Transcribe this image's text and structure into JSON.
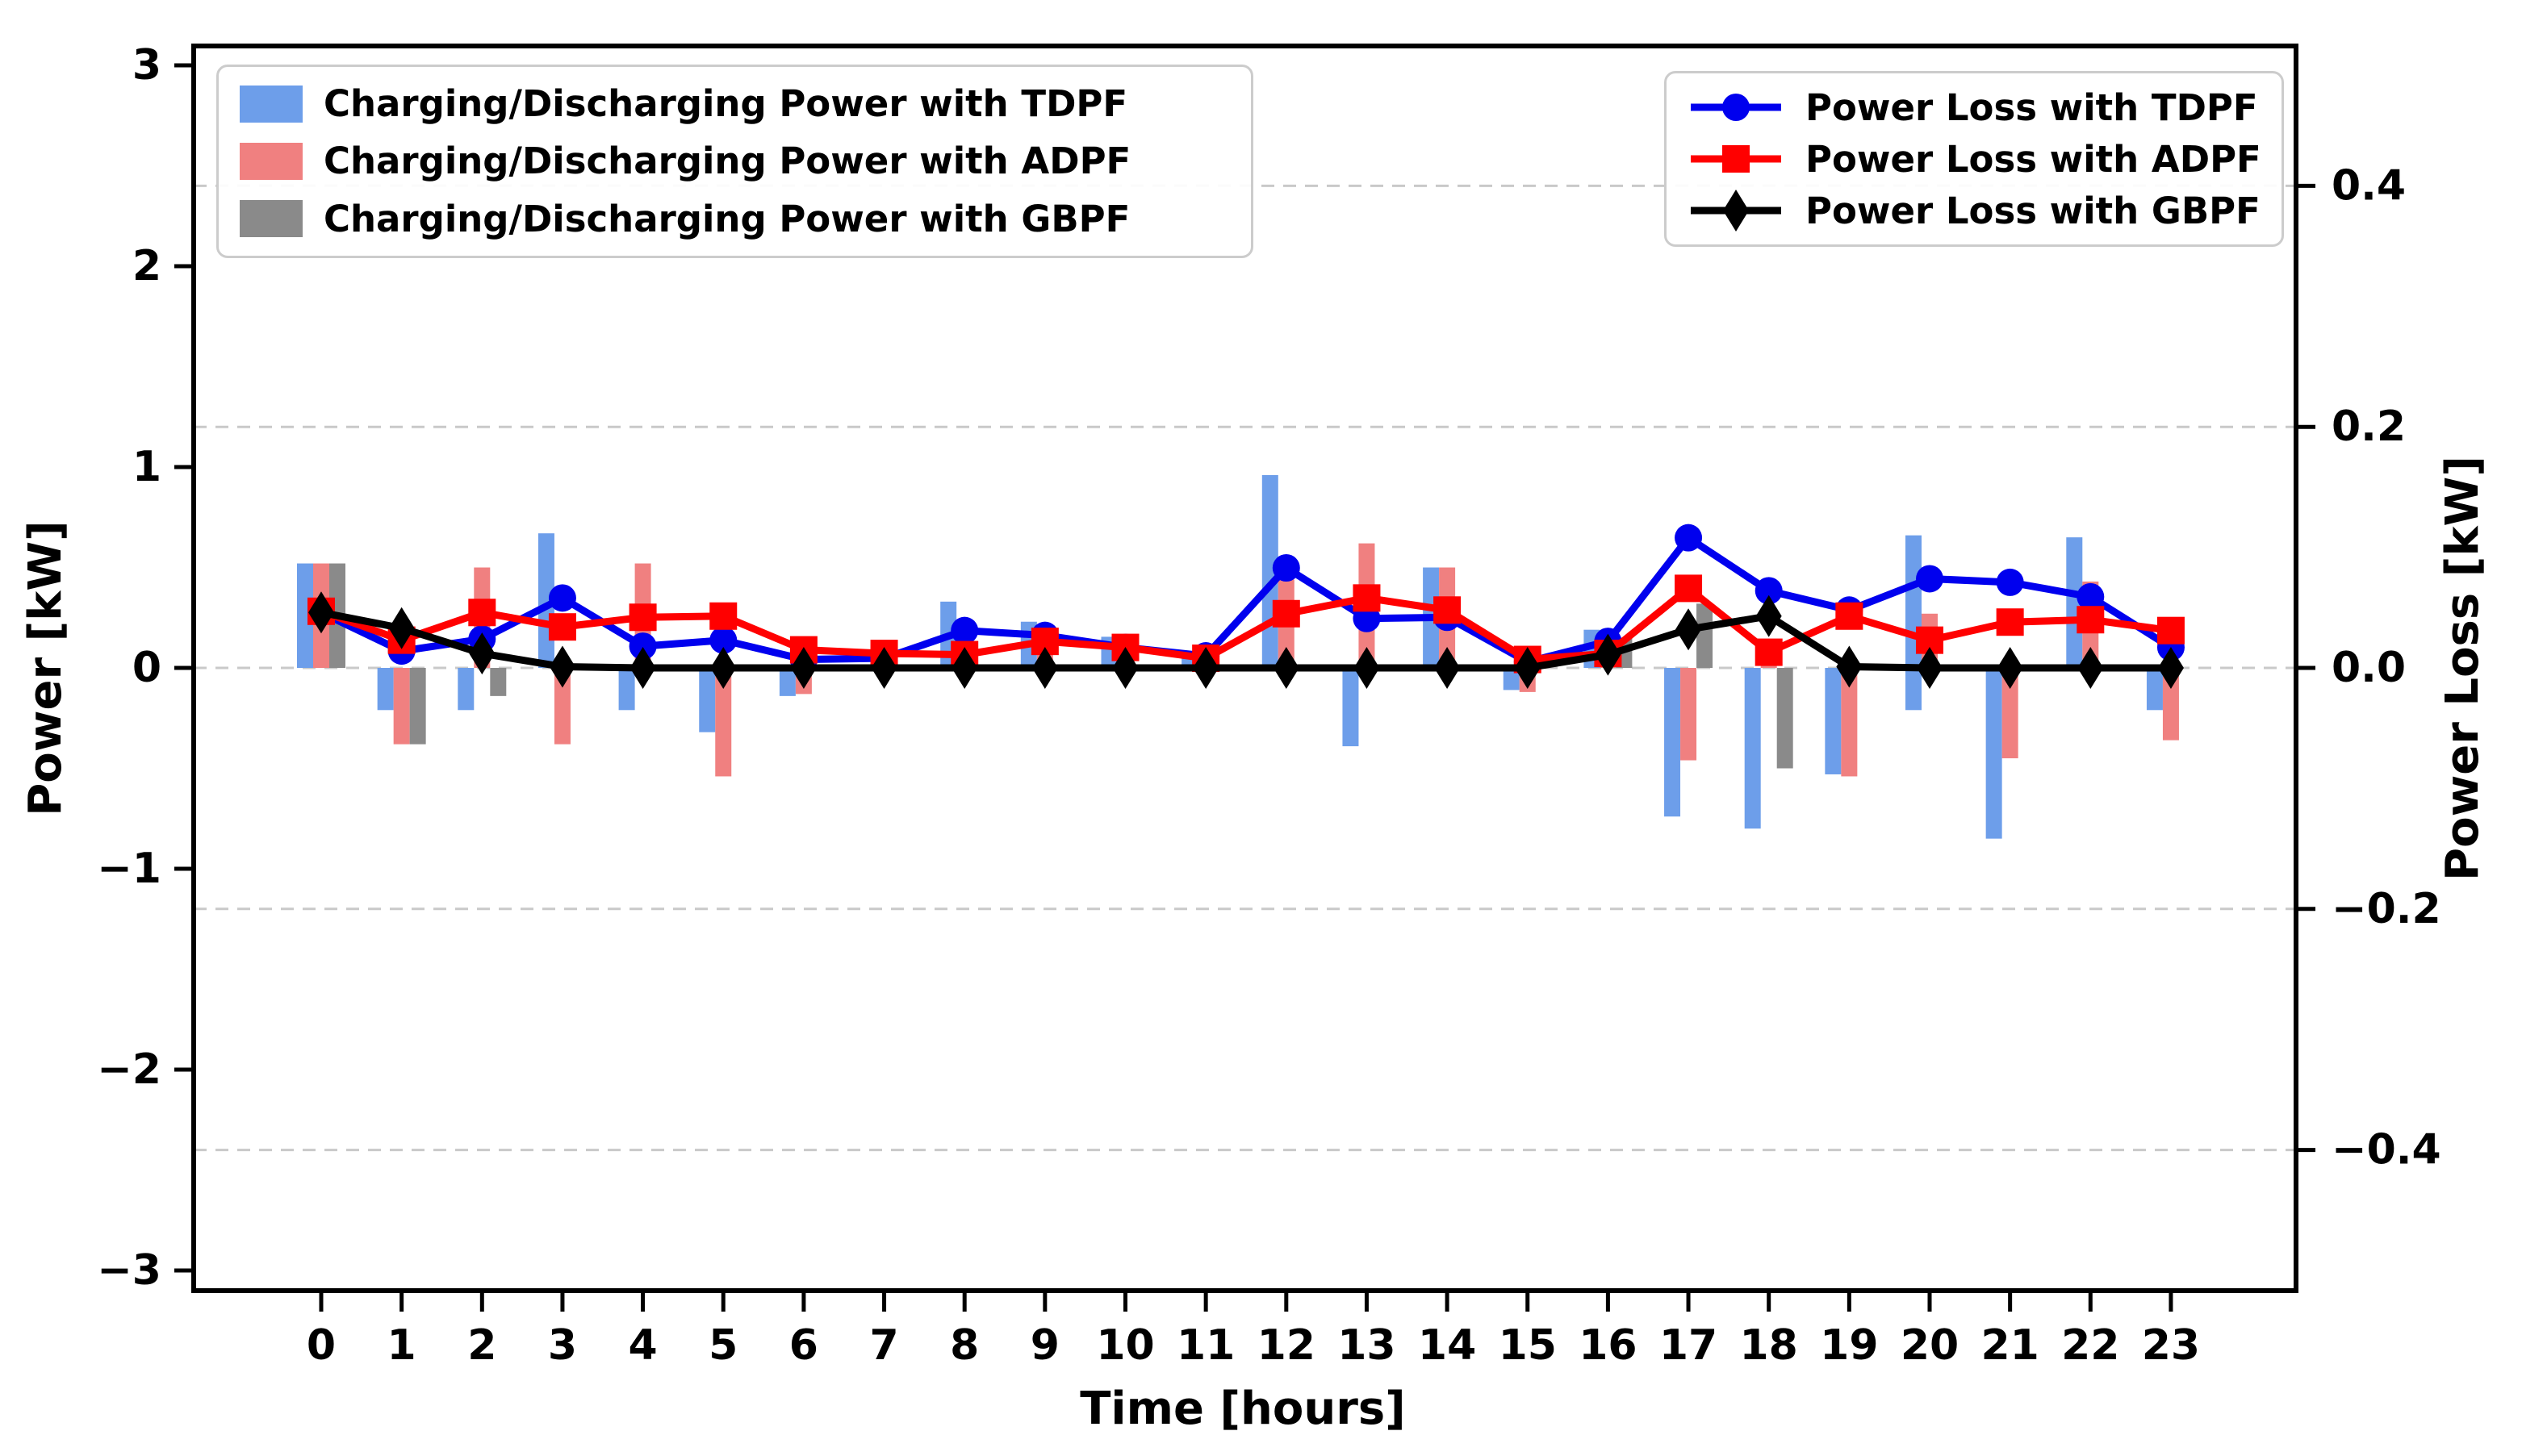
{
  "chart_data": {
    "type": "bar+line dual-axis",
    "xlabel": "Time [hours]",
    "ylabel_left": "Power [kW]",
    "ylabel_right": "Power Loss [kW]",
    "x": [
      0,
      1,
      2,
      3,
      4,
      5,
      6,
      7,
      8,
      9,
      10,
      11,
      12,
      13,
      14,
      15,
      16,
      17,
      18,
      19,
      20,
      21,
      22,
      23
    ],
    "xtick_labels": [
      "0",
      "1",
      "2",
      "3",
      "4",
      "5",
      "6",
      "7",
      "8",
      "9",
      "10",
      "11",
      "12",
      "13",
      "14",
      "15",
      "16",
      "17",
      "18",
      "19",
      "20",
      "21",
      "22",
      "23"
    ],
    "ylim_left": [
      -3.1,
      3.1
    ],
    "yticks_left": {
      "values": [
        3,
        2,
        1,
        0,
        -1,
        -2,
        -3
      ],
      "labels": [
        "3",
        "2",
        "1",
        "0",
        "−1",
        "−2",
        "−3"
      ]
    },
    "ylim_right": [
      -0.517,
      0.517
    ],
    "yticks_right": {
      "values": [
        0.4,
        0.2,
        0.0,
        -0.2,
        -0.4
      ],
      "labels": [
        "0.4",
        "0.2",
        "0.0",
        "−0.2",
        "−0.4"
      ]
    },
    "grid": {
      "on": true,
      "color": "#c9c9c9",
      "style": "dashed",
      "at_right_values": [
        0.4,
        0.2,
        0.0,
        -0.2,
        -0.4
      ]
    },
    "bar_series": [
      {
        "name": "Charging/Discharging Power with TDPF",
        "color": "#6d9eea",
        "pos": [
          0.52,
          0,
          0,
          0.67,
          0,
          0,
          0,
          0,
          0.33,
          0.23,
          0.155,
          0.08,
          0.96,
          0,
          0.5,
          0,
          0.19,
          0,
          0,
          0,
          0.66,
          0,
          0.65,
          0
        ],
        "neg": [
          0,
          -0.21,
          -0.21,
          0,
          -0.21,
          -0.32,
          -0.14,
          0,
          0,
          0,
          0,
          0,
          0,
          -0.39,
          0,
          -0.11,
          0,
          -0.74,
          -0.8,
          -0.53,
          -0.21,
          -0.85,
          0,
          -0.21
        ]
      },
      {
        "name": "Charging/Discharging Power with ADPF",
        "color": "#f08080",
        "pos": [
          0.52,
          0,
          0.5,
          0,
          0.52,
          0,
          0,
          0.05,
          0.06,
          0.21,
          0.15,
          0,
          0.44,
          0.62,
          0.5,
          0,
          0.15,
          0,
          0.1,
          0,
          0.27,
          0,
          0.43,
          0
        ],
        "neg": [
          0,
          -0.38,
          0,
          -0.38,
          0,
          -0.54,
          -0.13,
          0,
          0,
          0,
          0,
          0,
          0,
          0,
          0,
          -0.12,
          0,
          -0.46,
          0,
          -0.54,
          0,
          -0.45,
          0,
          -0.36
        ]
      },
      {
        "name": "Charging/Discharging Power with GBPF",
        "color": "#8a8a8a",
        "pos": [
          0.52,
          0,
          0,
          0,
          0,
          0,
          0,
          0,
          0,
          0,
          0,
          0,
          0,
          0,
          0,
          0,
          0.15,
          0.32,
          0,
          0,
          0,
          0,
          0,
          0
        ],
        "neg": [
          0,
          -0.38,
          -0.14,
          0,
          0,
          0,
          0,
          0,
          0,
          0,
          0,
          0,
          0,
          0,
          0,
          0,
          0,
          0,
          -0.5,
          0,
          0,
          0,
          0,
          0
        ]
      }
    ],
    "line_series": [
      {
        "name": "Power Loss with TDPF",
        "color": "#0000ee",
        "marker": "circle",
        "values": [
          0.046,
          0.014,
          0.024,
          0.058,
          0.018,
          0.023,
          0.007,
          0.008,
          0.031,
          0.027,
          0.017,
          0.01,
          0.083,
          0.041,
          0.042,
          0.005,
          0.022,
          0.108,
          0.064,
          0.048,
          0.074,
          0.071,
          0.059,
          0.017
        ]
      },
      {
        "name": "Power Loss with ADPF",
        "color": "#ff0000",
        "marker": "square",
        "values": [
          0.047,
          0.023,
          0.046,
          0.034,
          0.042,
          0.043,
          0.015,
          0.012,
          0.011,
          0.022,
          0.017,
          0.008,
          0.045,
          0.058,
          0.048,
          0.007,
          0.012,
          0.066,
          0.013,
          0.043,
          0.023,
          0.038,
          0.04,
          0.031
        ]
      },
      {
        "name": "Power Loss with GBPF",
        "color": "#000000",
        "marker": "diamond",
        "values": [
          0.046,
          0.033,
          0.012,
          0.001,
          0.0,
          0.0,
          0.0,
          0.0,
          0.0,
          0.0,
          0.0,
          0.0,
          0.0,
          0.0,
          0.0,
          0.0,
          0.011,
          0.032,
          0.043,
          0.001,
          0.0,
          0.0,
          0.0,
          0.0
        ]
      }
    ]
  }
}
